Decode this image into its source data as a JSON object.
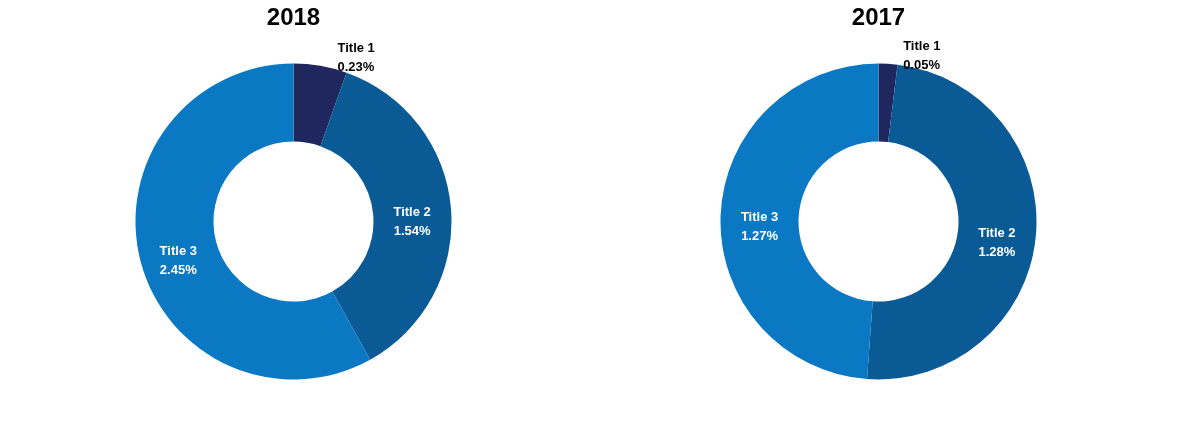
{
  "chart_data": [
    {
      "type": "donut",
      "title": "2018",
      "categories": [
        "Title 1",
        "Title 2",
        "Title 3"
      ],
      "values": [
        0.23,
        1.54,
        2.45
      ],
      "value_labels": [
        "0.23%",
        "1.54%",
        "2.45%"
      ],
      "colors": [
        "#20275f",
        "#0a5a96",
        "#0a78c2"
      ]
    },
    {
      "type": "donut",
      "title": "2017",
      "categories": [
        "Title 1",
        "Title 2",
        "Title 3"
      ],
      "values": [
        0.05,
        1.28,
        1.27
      ],
      "value_labels": [
        "0.05%",
        "1.28%",
        "1.27%"
      ],
      "colors": [
        "#20275f",
        "#0a5a96",
        "#0a78c2"
      ]
    }
  ]
}
